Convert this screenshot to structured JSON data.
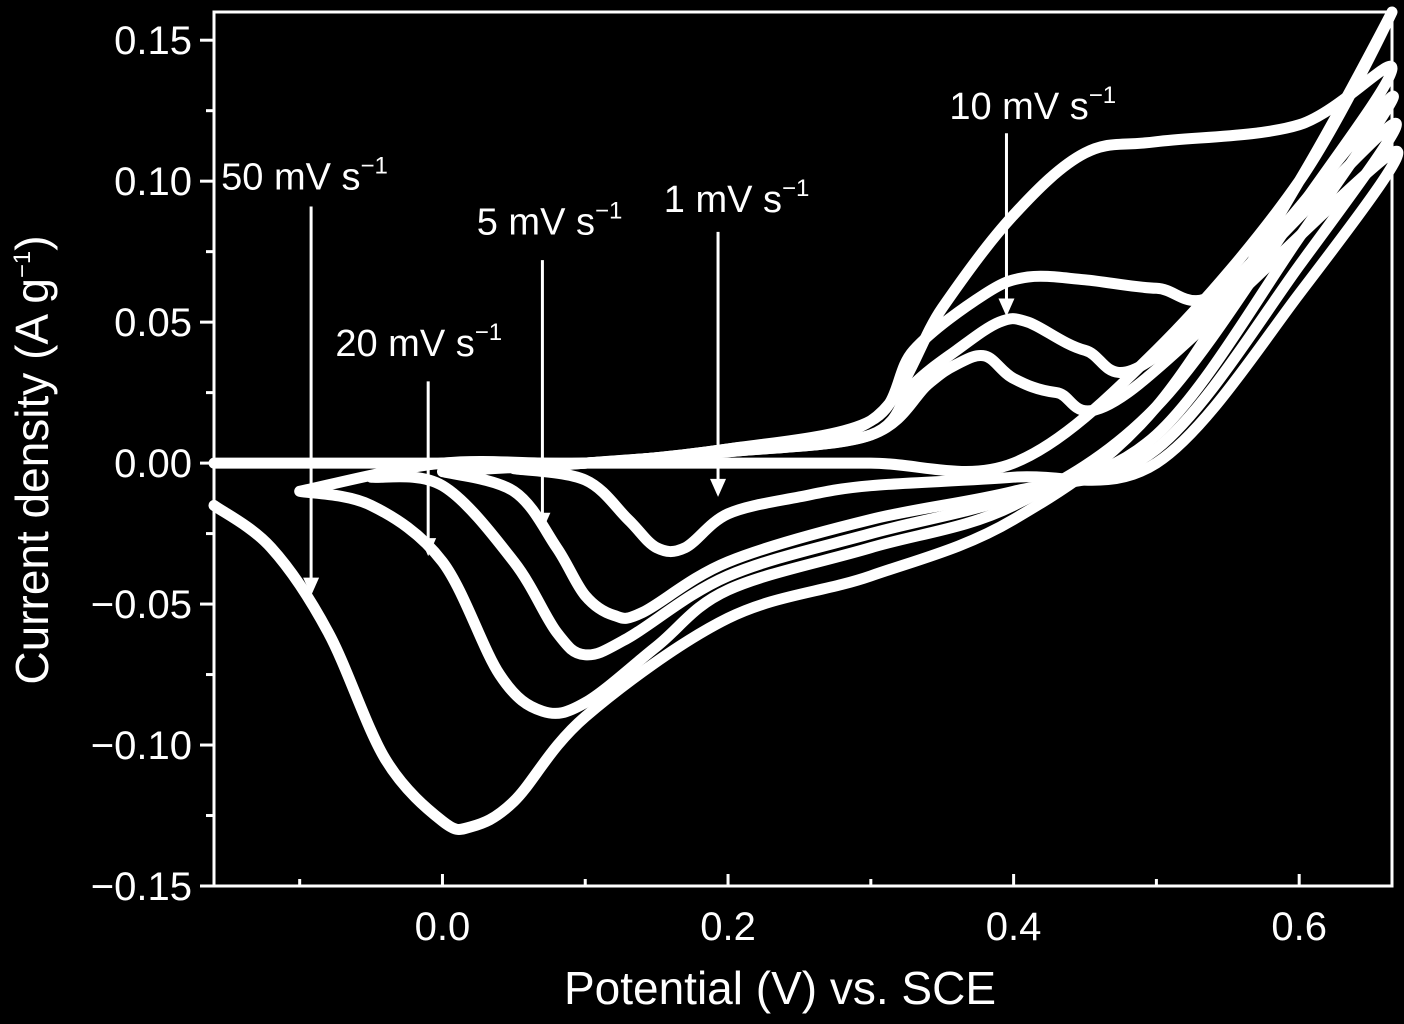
{
  "chart_data": {
    "type": "line",
    "title": "",
    "xlabel": "Potential (V) vs. SCE",
    "ylabel": "Current density (A g",
    "ylabel_sup": "−1",
    "ylabel_end": ")",
    "xlim": [
      -0.16,
      0.665
    ],
    "ylim": [
      -0.15,
      0.16
    ],
    "x_ticks": [
      0.0,
      0.2,
      0.4,
      0.6
    ],
    "x_tick_labels": [
      "0.0",
      "0.2",
      "0.4",
      "0.6"
    ],
    "y_ticks": [
      0.15,
      0.1,
      0.05,
      0.0,
      -0.05,
      -0.1,
      -0.15
    ],
    "y_tick_labels": [
      "0.15",
      "0.10",
      "0.05",
      "0.00",
      "−0.05",
      "−0.10",
      "−0.15"
    ],
    "grid": false,
    "colors": {
      "background": "#000000",
      "foreground": "#ffffff"
    },
    "series": [
      {
        "name": "50 mV s−1",
        "x": [
          -0.16,
          -0.12,
          -0.08,
          -0.04,
          0.0,
          0.02,
          0.05,
          0.1,
          0.2,
          0.3,
          0.4,
          0.5,
          0.6,
          0.665,
          0.6,
          0.5,
          0.4,
          0.3,
          0.2,
          0.1,
          0.0,
          -0.1,
          -0.16
        ],
        "y": [
          -0.015,
          -0.03,
          -0.06,
          -0.105,
          -0.127,
          -0.129,
          -0.12,
          -0.09,
          -0.055,
          -0.04,
          -0.02,
          0.02,
          0.1,
          0.16,
          0.1,
          0.04,
          0.0,
          0.0,
          0.0,
          0.0,
          0.0,
          0.0,
          0.0
        ]
      },
      {
        "name": "20 mV s−1",
        "x": [
          -0.1,
          -0.05,
          0.0,
          0.04,
          0.07,
          0.1,
          0.15,
          0.2,
          0.3,
          0.4,
          0.5,
          0.6,
          0.665,
          0.6,
          0.5,
          0.45,
          0.4,
          0.35,
          0.3,
          0.2,
          0.1,
          0.0,
          -0.1
        ],
        "y": [
          -0.01,
          -0.015,
          -0.035,
          -0.075,
          -0.088,
          -0.085,
          -0.065,
          -0.045,
          -0.03,
          -0.015,
          0.02,
          0.09,
          0.14,
          0.12,
          0.114,
          0.11,
          0.088,
          0.055,
          0.015,
          0.005,
          0.0,
          0.0,
          -0.01
        ]
      },
      {
        "name": "10 mV s−1",
        "x": [
          -0.05,
          0.0,
          0.05,
          0.08,
          0.1,
          0.13,
          0.2,
          0.3,
          0.4,
          0.5,
          0.6,
          0.665,
          0.55,
          0.5,
          0.45,
          0.41,
          0.38,
          0.33,
          0.3,
          0.2,
          0.1,
          0.0,
          -0.05
        ],
        "y": [
          -0.005,
          -0.008,
          -0.035,
          -0.06,
          -0.068,
          -0.062,
          -0.04,
          -0.025,
          -0.012,
          0.01,
          0.08,
          0.13,
          0.063,
          0.062,
          0.065,
          0.066,
          0.06,
          0.04,
          0.015,
          0.005,
          0.0,
          0.0,
          -0.005
        ]
      },
      {
        "name": "5 mV s−1",
        "x": [
          0.0,
          0.05,
          0.08,
          0.1,
          0.12,
          0.14,
          0.2,
          0.3,
          0.4,
          0.5,
          0.6,
          0.665,
          0.5,
          0.45,
          0.41,
          0.39,
          0.36,
          0.33,
          0.3,
          0.2,
          0.1,
          0.0
        ],
        "y": [
          -0.003,
          -0.01,
          -0.03,
          -0.047,
          -0.054,
          -0.053,
          -0.035,
          -0.02,
          -0.01,
          0.005,
          0.07,
          0.12,
          0.038,
          0.04,
          0.05,
          0.05,
          0.04,
          0.028,
          0.01,
          0.004,
          0.0,
          -0.003
        ]
      },
      {
        "name": "1 mV s−1",
        "x": [
          0.05,
          0.1,
          0.13,
          0.15,
          0.17,
          0.2,
          0.25,
          0.3,
          0.4,
          0.5,
          0.6,
          0.665,
          0.48,
          0.43,
          0.4,
          0.38,
          0.36,
          0.34,
          0.3,
          0.2,
          0.1,
          0.05
        ],
        "y": [
          -0.002,
          -0.006,
          -0.02,
          -0.03,
          -0.03,
          -0.018,
          -0.012,
          -0.008,
          -0.005,
          0.0,
          0.06,
          0.11,
          0.025,
          0.025,
          0.03,
          0.038,
          0.035,
          0.028,
          0.01,
          0.004,
          0.0,
          -0.002
        ]
      }
    ],
    "annotations": [
      {
        "text": "50 mV s",
        "sup": "−1",
        "label_x": -0.155,
        "label_y": 0.097,
        "arrow_x": -0.092,
        "arrow_from_y": 0.091,
        "arrow_to_y": -0.047
      },
      {
        "text": "20 mV s",
        "sup": "−1",
        "label_x": -0.075,
        "label_y": 0.038,
        "arrow_x": -0.01,
        "arrow_from_y": 0.029,
        "arrow_to_y": -0.033
      },
      {
        "text": "5 mV s",
        "sup": "−1",
        "label_x": 0.024,
        "label_y": 0.081,
        "arrow_x": 0.07,
        "arrow_from_y": 0.072,
        "arrow_to_y": -0.024
      },
      {
        "text": "1 mV s",
        "sup": "−1",
        "label_x": 0.155,
        "label_y": 0.089,
        "arrow_x": 0.193,
        "arrow_from_y": 0.082,
        "arrow_to_y": -0.012
      },
      {
        "text": "10 mV s",
        "sup": "−1",
        "label_x": 0.355,
        "label_y": 0.122,
        "arrow_x": 0.395,
        "arrow_from_y": 0.117,
        "arrow_to_y": 0.052
      }
    ]
  }
}
